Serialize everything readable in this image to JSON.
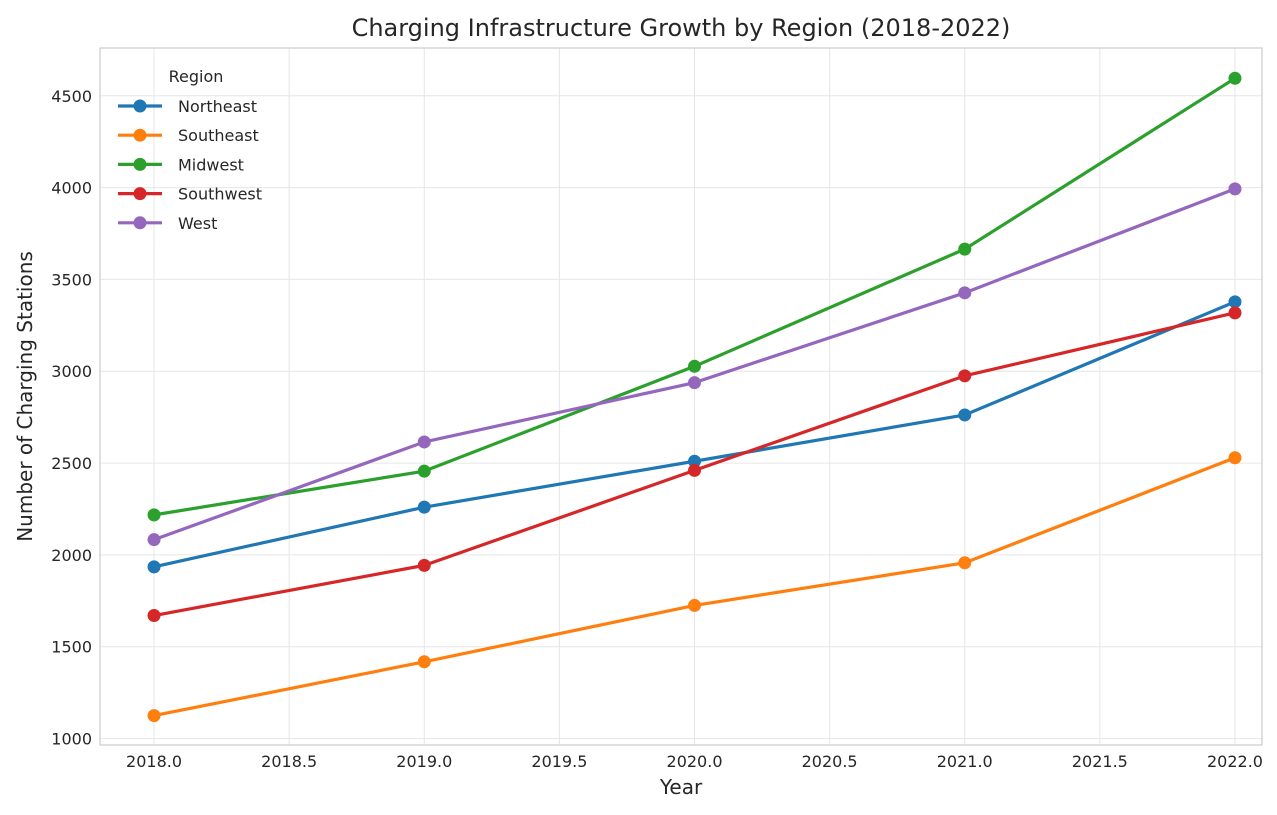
{
  "chart_data": {
    "type": "line",
    "title": "Charging Infrastructure Growth by Region (2018-2022)",
    "xlabel": "Year",
    "ylabel": "Number of Charging Stations",
    "xlim": [
      2017.8,
      2022.1
    ],
    "ylim": [
      965,
      4760
    ],
    "x_ticks": [
      2018.0,
      2018.5,
      2019.0,
      2019.5,
      2020.0,
      2020.5,
      2021.0,
      2021.5,
      2022.0
    ],
    "x_tick_labels": [
      "2018.0",
      "2018.5",
      "2019.0",
      "2019.5",
      "2020.0",
      "2020.5",
      "2021.0",
      "2021.5",
      "2022.0"
    ],
    "y_ticks": [
      1000,
      1500,
      2000,
      2500,
      3000,
      3500,
      4000,
      4500
    ],
    "y_tick_labels": [
      "1000",
      "1500",
      "2000",
      "2500",
      "3000",
      "3500",
      "4000",
      "4500"
    ],
    "grid": true,
    "legend": {
      "title": "Region",
      "placement": "top-left"
    },
    "x": [
      2018,
      2019,
      2020,
      2021,
      2022
    ],
    "series": [
      {
        "name": "Northeast",
        "color": "#1f77b4",
        "values": [
          1935,
          2260,
          2510,
          2762,
          3378
        ]
      },
      {
        "name": "Southeast",
        "color": "#ff7f0e",
        "values": [
          1125,
          1418,
          1725,
          1957,
          2529
        ]
      },
      {
        "name": "Midwest",
        "color": "#2ca02c",
        "values": [
          2218,
          2456,
          3027,
          3665,
          4595
        ]
      },
      {
        "name": "Southwest",
        "color": "#d62728",
        "values": [
          1670,
          1943,
          2460,
          2975,
          3318
        ]
      },
      {
        "name": "West",
        "color": "#9467bd",
        "values": [
          2083,
          2615,
          2938,
          3427,
          3993
        ]
      }
    ]
  }
}
